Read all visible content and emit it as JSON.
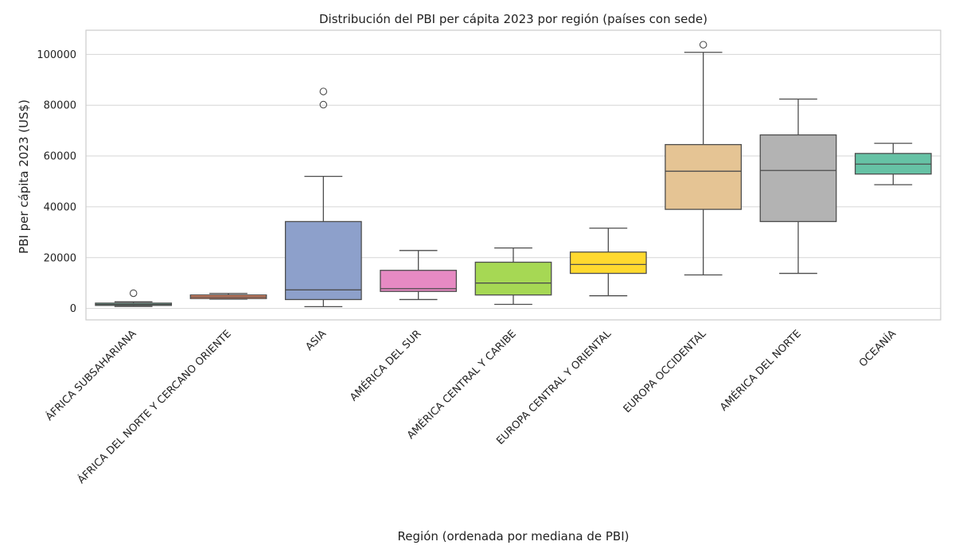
{
  "chart_data": {
    "type": "box",
    "title": "Distribución del PBI per cápita 2023 por región (países con sede)",
    "xlabel": "Región (ordenada por mediana de PBI)",
    "ylabel": "PBI per cápita 2023 (US$)",
    "ylim": [
      -4500,
      109500
    ],
    "yticks": [
      0,
      20000,
      40000,
      60000,
      80000,
      100000
    ],
    "grid": "horizontal",
    "categories": [
      "ÁFRICA SUBSAHARIANA",
      "ÁFRICA DEL NORTE Y CERCANO ORIENTE",
      "ASIA",
      "AMÉRICA DEL SUR",
      "AMÉRICA CENTRAL Y CARIBE",
      "EUROPA CENTRAL Y ORIENTAL",
      "EUROPA OCCIDENTAL",
      "AMÉRICA DEL NORTE",
      "OCEANÍA"
    ],
    "boxes": [
      {
        "whisker_low": 800,
        "q1": 1200,
        "median": 1600,
        "q3": 2100,
        "whisker_high": 2600,
        "outliers": [
          6000
        ],
        "color": "#66c2a5"
      },
      {
        "whisker_low": 3700,
        "q1": 3900,
        "median": 4500,
        "q3": 5300,
        "whisker_high": 5900,
        "outliers": [],
        "color": "#fc8d62"
      },
      {
        "whisker_low": 700,
        "q1": 3500,
        "median": 7300,
        "q3": 34200,
        "whisker_high": 52000,
        "outliers": [
          80200,
          85400
        ],
        "color": "#8da0cb"
      },
      {
        "whisker_low": 3500,
        "q1": 6700,
        "median": 7800,
        "q3": 15000,
        "whisker_high": 22800,
        "outliers": [],
        "color": "#e78ac3"
      },
      {
        "whisker_low": 1600,
        "q1": 5300,
        "median": 10000,
        "q3": 18200,
        "whisker_high": 23800,
        "outliers": [],
        "color": "#a6d854"
      },
      {
        "whisker_low": 5000,
        "q1": 13800,
        "median": 17300,
        "q3": 22200,
        "whisker_high": 31600,
        "outliers": [],
        "color": "#ffd92f"
      },
      {
        "whisker_low": 13200,
        "q1": 39000,
        "median": 54000,
        "q3": 64500,
        "whisker_high": 100800,
        "outliers": [
          103800
        ],
        "color": "#e5c494"
      },
      {
        "whisker_low": 13800,
        "q1": 34200,
        "median": 54300,
        "q3": 68300,
        "whisker_high": 82400,
        "outliers": [],
        "color": "#b3b3b3"
      },
      {
        "whisker_low": 48700,
        "q1": 52900,
        "median": 56800,
        "q3": 61000,
        "whisker_high": 65000,
        "outliers": [],
        "color": "#66c2a5"
      }
    ]
  }
}
